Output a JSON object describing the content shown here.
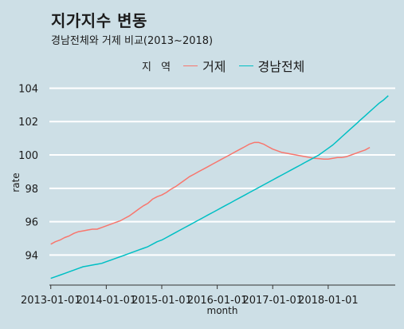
{
  "title": "지가지수 변동",
  "subtitle": "경남전체와 거제 비교(2013~2018)",
  "chart_data": {
    "type": "line",
    "xlabel": "month",
    "ylabel": "rate",
    "x_ticks": [
      "2013-01-01",
      "2014-01-01",
      "2015-01-01",
      "2016-01-01",
      "2017-01-01",
      "2018-01-01"
    ],
    "y_ticks": [
      94,
      96,
      98,
      100,
      102,
      104
    ],
    "ylim": [
      92.2,
      104.5
    ],
    "grid": true,
    "legend": {
      "title": "지 역",
      "position": "top"
    },
    "x_start": "2013-01",
    "series": [
      {
        "name": "거제",
        "color": "#f8766d",
        "values": [
          94.65,
          94.8,
          94.9,
          95.05,
          95.15,
          95.3,
          95.4,
          95.45,
          95.5,
          95.55,
          95.55,
          95.65,
          95.75,
          95.85,
          95.95,
          96.05,
          96.2,
          96.35,
          96.55,
          96.75,
          96.95,
          97.1,
          97.35,
          97.5,
          97.6,
          97.75,
          97.95,
          98.1,
          98.3,
          98.5,
          98.7,
          98.85,
          99.0,
          99.15,
          99.3,
          99.45,
          99.6,
          99.75,
          99.9,
          100.05,
          100.2,
          100.35,
          100.5,
          100.65,
          100.75,
          100.75,
          100.65,
          100.5,
          100.35,
          100.25,
          100.15,
          100.1,
          100.05,
          100.0,
          99.95,
          99.9,
          99.85,
          99.8,
          99.78,
          99.75,
          99.75,
          99.8,
          99.85,
          99.85,
          99.9,
          100.0,
          100.1,
          100.2,
          100.3,
          100.45
        ]
      },
      {
        "name": "경남전체",
        "color": "#00bfc4",
        "values": [
          92.6,
          92.7,
          92.8,
          92.9,
          93.0,
          93.1,
          93.2,
          93.3,
          93.35,
          93.4,
          93.45,
          93.5,
          93.6,
          93.7,
          93.8,
          93.9,
          94.0,
          94.1,
          94.2,
          94.3,
          94.4,
          94.5,
          94.65,
          94.8,
          94.9,
          95.05,
          95.2,
          95.35,
          95.5,
          95.65,
          95.8,
          95.95,
          96.1,
          96.25,
          96.4,
          96.55,
          96.7,
          96.85,
          97.0,
          97.15,
          97.3,
          97.45,
          97.6,
          97.75,
          97.9,
          98.05,
          98.2,
          98.35,
          98.5,
          98.65,
          98.8,
          98.95,
          99.1,
          99.25,
          99.4,
          99.55,
          99.7,
          99.85,
          100.0,
          100.2,
          100.4,
          100.6,
          100.85,
          101.1,
          101.35,
          101.6,
          101.85,
          102.1,
          102.35,
          102.6,
          102.85,
          103.1,
          103.3,
          103.55
        ]
      }
    ]
  }
}
